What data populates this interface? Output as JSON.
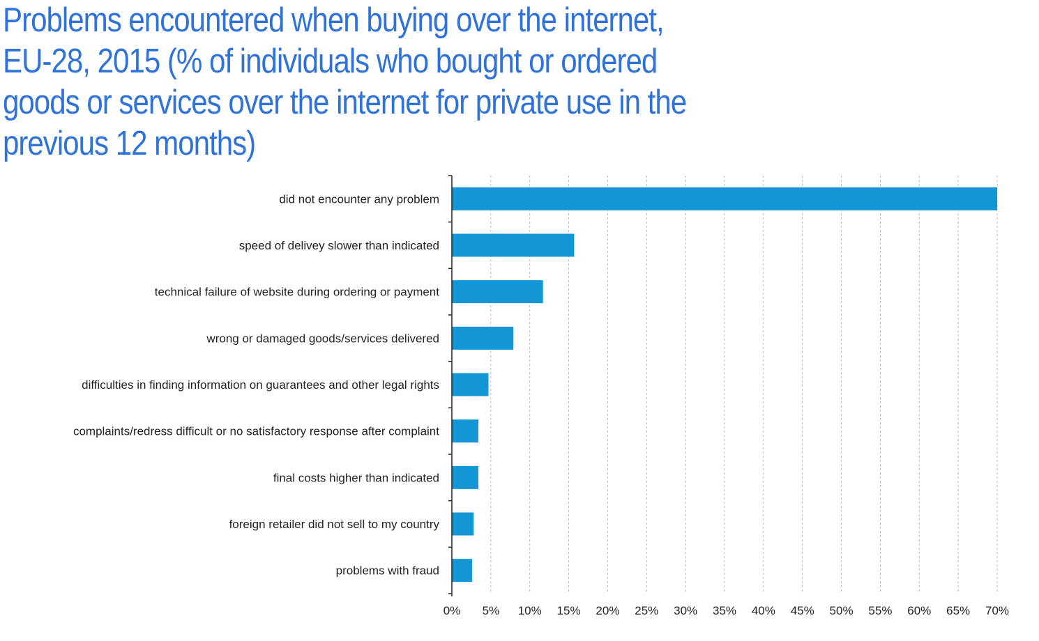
{
  "chart_data": {
    "type": "bar",
    "orientation": "horizontal",
    "title": "Problems encountered when buying over the internet, EU-28, 2015 (% of individuals who bought or ordered goods or services over the internet for private use in the previous 12 months)",
    "categories": [
      "did not encounter any problem",
      "speed of delivey slower than indicated",
      "technical failure of website during  ordering or payment",
      "wrong or damaged goods/services delivered",
      "difficulties in finding information on guarantees and other legal rights",
      "complaints/redress difficult or no satisfactory response after complaint",
      "final costs higher than indicated",
      "foreign retailer did not sell to my country",
      "problems with fraud"
    ],
    "values": [
      70,
      15.7,
      11.7,
      7.9,
      4.7,
      3.4,
      3.4,
      2.8,
      2.6
    ],
    "xlim": [
      0,
      70
    ],
    "xticks": [
      "0%",
      "5%",
      "10%",
      "15%",
      "20%",
      "25%",
      "30%",
      "35%",
      "40%",
      "45%",
      "50%",
      "55%",
      "60%",
      "65%",
      "70%"
    ],
    "grid": "vertical dashed",
    "bar_color": "#1296d6"
  }
}
